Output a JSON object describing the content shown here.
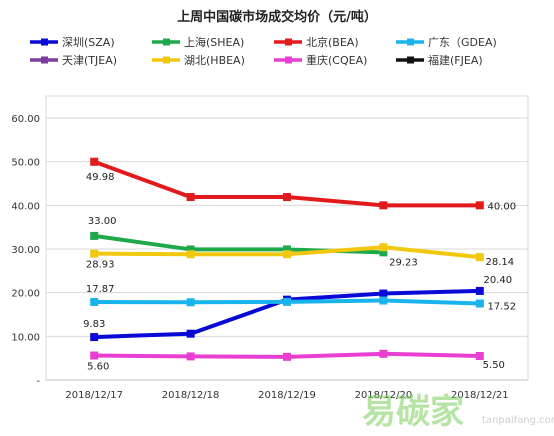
{
  "chart_data": {
    "type": "line",
    "title": "上周中国碳市场成交均价（元/吨）",
    "categories": [
      "2018/12/17",
      "2018/12/18",
      "2018/12/19",
      "2018/12/20",
      "2018/12/21"
    ],
    "ylim": [
      0,
      60
    ],
    "ytick_labels": [
      "-",
      "10.00",
      "20.00",
      "30.00",
      "40.00",
      "50.00",
      "60.00"
    ],
    "grid": true,
    "legend_position": "top",
    "series": [
      {
        "name": "深圳(SZA)",
        "color": "#0a0ad6",
        "values": [
          9.83,
          10.6,
          18.4,
          19.8,
          20.4
        ],
        "labels": {
          "0": "9.83",
          "4": "20.40"
        }
      },
      {
        "name": "上海(SHEA)",
        "color": "#1fa84a",
        "values": [
          33.0,
          29.9,
          29.9,
          29.23,
          null
        ],
        "labels": {
          "0": "33.00",
          "3": "29.23"
        }
      },
      {
        "name": "北京(BEA)",
        "color": "#e31a1c",
        "values": [
          49.98,
          41.9,
          41.9,
          40.0,
          40.0
        ],
        "labels": {
          "0": "49.98",
          "4": "40.00"
        }
      },
      {
        "name": "广东（GDEA)",
        "color": "#1ab4ec",
        "values": [
          17.87,
          17.8,
          17.9,
          18.2,
          17.52
        ],
        "labels": {
          "0": "17.87",
          "4": "17.52"
        }
      },
      {
        "name": "天津(TJEA)",
        "color": "#7a3d9e",
        "values": [
          null,
          null,
          null,
          null,
          null
        ],
        "labels": {}
      },
      {
        "name": "湖北(HBEA)",
        "color": "#f2c80f",
        "values": [
          28.93,
          28.8,
          28.8,
          30.4,
          28.14
        ],
        "labels": {
          "0": "28.93",
          "4": "28.14"
        }
      },
      {
        "name": "重庆(CQEA)",
        "color": "#e83fd2",
        "values": [
          5.6,
          5.4,
          5.3,
          6.0,
          5.5
        ],
        "labels": {
          "0": "5.60",
          "4": "5.50"
        }
      },
      {
        "name": "福建(FJEA)",
        "color": "#111111",
        "values": [
          null,
          null,
          null,
          null,
          null
        ],
        "labels": {}
      }
    ]
  },
  "watermark": {
    "brand": "易碳家",
    "url": "tanpaifang.com"
  }
}
